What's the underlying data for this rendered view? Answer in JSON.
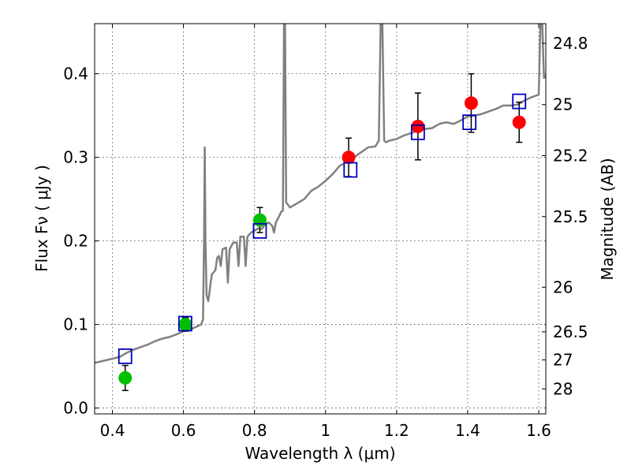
{
  "chart_data": {
    "type": "scatter",
    "xlabel": "Wavelength  λ (μm)",
    "ylabel": "Flux  Fν  ( μJy )",
    "ylabel_right": "Magnitude (AB)",
    "xlim": [
      0.35,
      1.62
    ],
    "ylim": [
      -0.007,
      0.46
    ],
    "x_ticks": [
      0.4,
      0.6,
      0.8,
      1.0,
      1.2,
      1.4,
      1.6
    ],
    "x_tick_labels": [
      "0.4",
      "0.6",
      "0.8",
      "1",
      "1.2",
      "1.4",
      "1.6"
    ],
    "y_ticks": [
      0.0,
      0.1,
      0.2,
      0.3,
      0.4
    ],
    "y_tick_labels": [
      "0.0",
      "0.1",
      "0.2",
      "0.3",
      "0.4"
    ],
    "right_ticks": [
      {
        "mag": 24.8,
        "label": "24.8"
      },
      {
        "mag": 25.0,
        "label": "25"
      },
      {
        "mag": 25.2,
        "label": "25.2"
      },
      {
        "mag": 25.5,
        "label": "25.5"
      },
      {
        "mag": 26.0,
        "label": "26"
      },
      {
        "mag": 26.5,
        "label": "26.5"
      },
      {
        "mag": 27.0,
        "label": "27"
      },
      {
        "mag": 28.0,
        "label": "28"
      }
    ],
    "grid": true,
    "series": [
      {
        "kind": "line",
        "color": "#808080",
        "points": [
          [
            0.35,
            0.054
          ],
          [
            0.36,
            0.055
          ],
          [
            0.38,
            0.057
          ],
          [
            0.4,
            0.059
          ],
          [
            0.42,
            0.061
          ],
          [
            0.44,
            0.066
          ],
          [
            0.46,
            0.07
          ],
          [
            0.48,
            0.073
          ],
          [
            0.5,
            0.076
          ],
          [
            0.52,
            0.08
          ],
          [
            0.54,
            0.083
          ],
          [
            0.56,
            0.085
          ],
          [
            0.58,
            0.088
          ],
          [
            0.6,
            0.092
          ],
          [
            0.62,
            0.094
          ],
          [
            0.64,
            0.098
          ],
          [
            0.65,
            0.1
          ],
          [
            0.655,
            0.106
          ],
          [
            0.658,
            0.2
          ],
          [
            0.66,
            0.312
          ],
          [
            0.662,
            0.2
          ],
          [
            0.665,
            0.135
          ],
          [
            0.67,
            0.128
          ],
          [
            0.675,
            0.145
          ],
          [
            0.68,
            0.16
          ],
          [
            0.69,
            0.165
          ],
          [
            0.695,
            0.18
          ],
          [
            0.7,
            0.182
          ],
          [
            0.705,
            0.17
          ],
          [
            0.71,
            0.19
          ],
          [
            0.72,
            0.192
          ],
          [
            0.725,
            0.15
          ],
          [
            0.73,
            0.19
          ],
          [
            0.74,
            0.198
          ],
          [
            0.75,
            0.198
          ],
          [
            0.755,
            0.17
          ],
          [
            0.76,
            0.205
          ],
          [
            0.77,
            0.205
          ],
          [
            0.775,
            0.17
          ],
          [
            0.78,
            0.205
          ],
          [
            0.79,
            0.21
          ],
          [
            0.8,
            0.212
          ],
          [
            0.81,
            0.215
          ],
          [
            0.82,
            0.214
          ],
          [
            0.83,
            0.22
          ],
          [
            0.84,
            0.222
          ],
          [
            0.85,
            0.218
          ],
          [
            0.855,
            0.21
          ],
          [
            0.86,
            0.222
          ],
          [
            0.87,
            0.23
          ],
          [
            0.875,
            0.235
          ],
          [
            0.88,
            0.236
          ],
          [
            0.883,
            0.46
          ],
          [
            0.886,
            0.46
          ],
          [
            0.889,
            0.246
          ],
          [
            0.9,
            0.24
          ],
          [
            0.92,
            0.245
          ],
          [
            0.94,
            0.25
          ],
          [
            0.96,
            0.26
          ],
          [
            0.98,
            0.265
          ],
          [
            1.0,
            0.272
          ],
          [
            1.02,
            0.28
          ],
          [
            1.03,
            0.285
          ],
          [
            1.04,
            0.29
          ],
          [
            1.05,
            0.292
          ],
          [
            1.06,
            0.296
          ],
          [
            1.07,
            0.3
          ],
          [
            1.08,
            0.3
          ],
          [
            1.09,
            0.303
          ],
          [
            1.1,
            0.306
          ],
          [
            1.12,
            0.312
          ],
          [
            1.14,
            0.313
          ],
          [
            1.15,
            0.32
          ],
          [
            1.155,
            0.46
          ],
          [
            1.16,
            0.46
          ],
          [
            1.165,
            0.32
          ],
          [
            1.17,
            0.318
          ],
          [
            1.18,
            0.32
          ],
          [
            1.2,
            0.322
          ],
          [
            1.22,
            0.326
          ],
          [
            1.24,
            0.329
          ],
          [
            1.26,
            0.332
          ],
          [
            1.28,
            0.334
          ],
          [
            1.3,
            0.335
          ],
          [
            1.32,
            0.34
          ],
          [
            1.34,
            0.342
          ],
          [
            1.36,
            0.34
          ],
          [
            1.38,
            0.344
          ],
          [
            1.4,
            0.349
          ],
          [
            1.42,
            0.35
          ],
          [
            1.44,
            0.352
          ],
          [
            1.46,
            0.355
          ],
          [
            1.48,
            0.358
          ],
          [
            1.5,
            0.362
          ],
          [
            1.52,
            0.362
          ],
          [
            1.54,
            0.363
          ],
          [
            1.56,
            0.368
          ],
          [
            1.58,
            0.372
          ],
          [
            1.6,
            0.375
          ],
          [
            1.605,
            0.46
          ],
          [
            1.61,
            0.46
          ],
          [
            1.615,
            0.395
          ],
          [
            1.62,
            0.398
          ]
        ]
      },
      {
        "kind": "points",
        "marker": "circle",
        "color": "#00bf00",
        "x": [
          0.436,
          0.605,
          0.815
        ],
        "y": [
          0.036,
          0.1,
          0.225
        ],
        "yerr": [
          0.015,
          0.008,
          0.015
        ]
      },
      {
        "kind": "points",
        "marker": "circle",
        "color": "#ff0000",
        "x": [
          1.065,
          1.26,
          1.41,
          1.545
        ],
        "y": [
          0.3,
          0.337,
          0.365,
          0.342
        ],
        "yerr": [
          0.023,
          0.04,
          0.035,
          0.024
        ]
      },
      {
        "kind": "points",
        "marker": "square-open",
        "color": "#0000bf",
        "x": [
          0.436,
          0.605,
          0.815,
          1.07,
          1.26,
          1.405,
          1.545
        ],
        "y": [
          0.062,
          0.101,
          0.212,
          0.285,
          0.33,
          0.342,
          0.367
        ]
      }
    ]
  }
}
